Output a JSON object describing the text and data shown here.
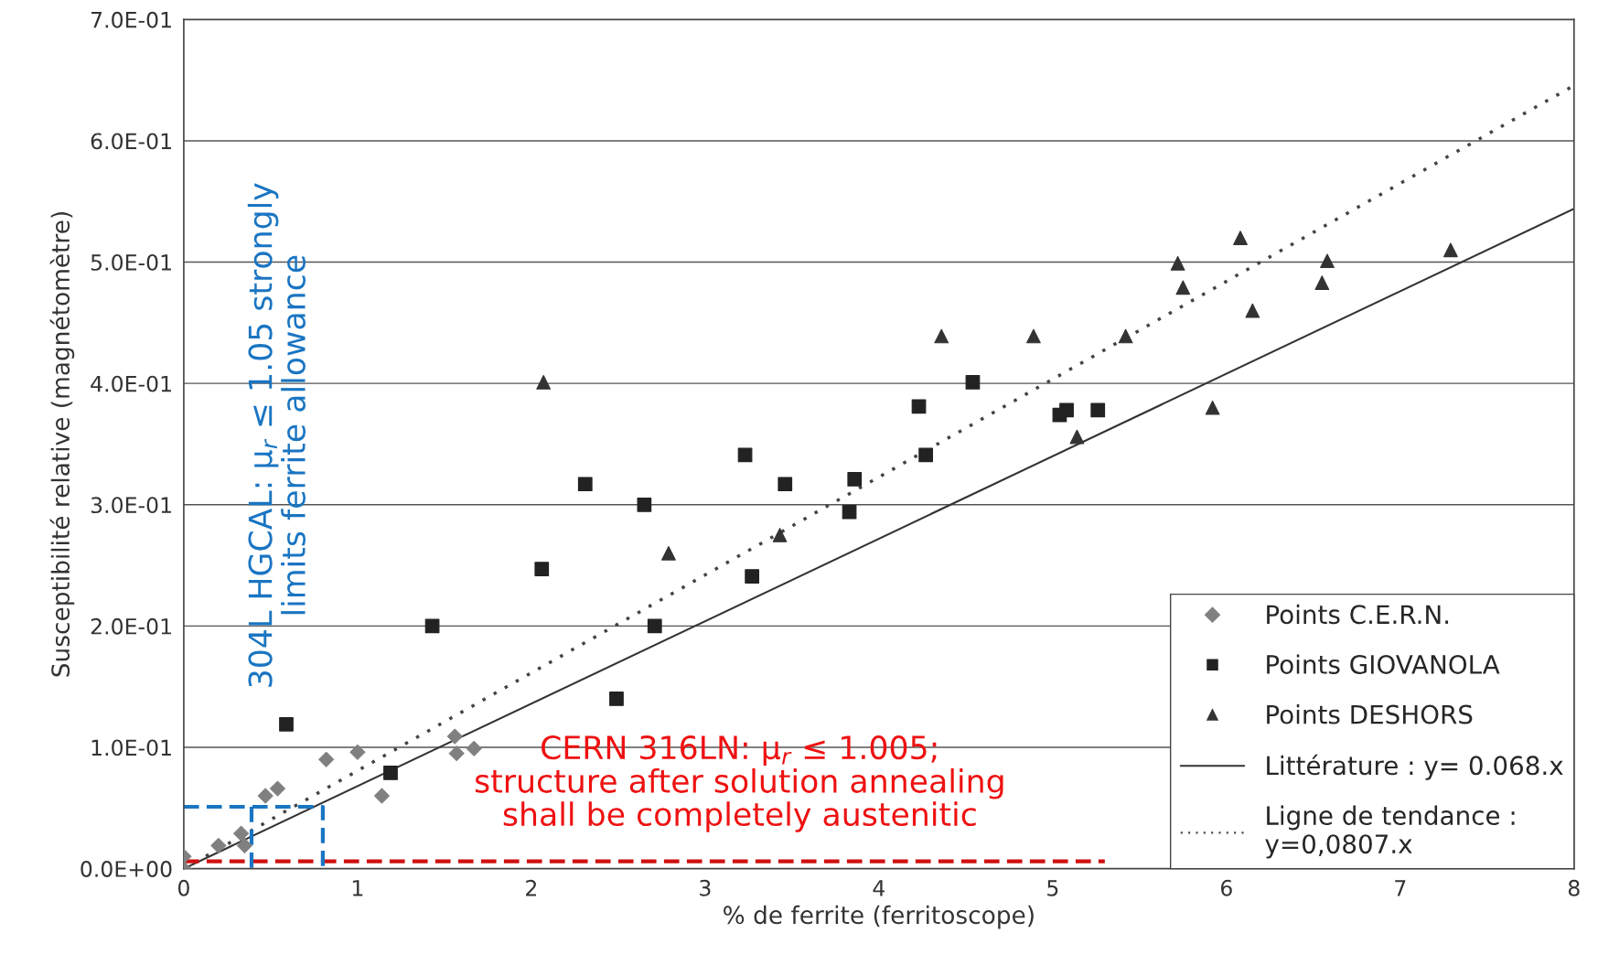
{
  "chart_data": {
    "type": "scatter",
    "xlabel": "% de ferrite (ferritoscope)",
    "ylabel": "Susceptibilité relative (magnétomètre)",
    "xlim": [
      0,
      8
    ],
    "xticks": [
      0,
      1,
      2,
      3,
      4,
      5,
      6,
      7,
      8
    ],
    "ylim": [
      0,
      0.7
    ],
    "yticks": [
      {
        "value": 0,
        "label": "0.0E+00"
      },
      {
        "value": 0.1,
        "label": "1.0E-01"
      },
      {
        "value": 0.2,
        "label": "2.0E-01"
      },
      {
        "value": 0.3,
        "label": "3.0E-01"
      },
      {
        "value": 0.4,
        "label": "4.0E-01"
      },
      {
        "value": 0.5,
        "label": "5.0E-01"
      },
      {
        "value": 0.6,
        "label": "6.0E-01"
      },
      {
        "value": 0.7,
        "label": "7.0E-01"
      }
    ],
    "grid": "y",
    "legend": "bottom right",
    "series": [
      {
        "name": "Points C.E.R.N.",
        "marker": "diamond",
        "color": "#808080",
        "x": [
          0,
          0,
          0.2,
          0.33,
          0.35,
          0.47,
          0.54,
          0.82,
          1.0,
          1.14,
          1.56,
          1.57,
          1.67
        ],
        "values": [
          0,
          0.01,
          0.019,
          0.029,
          0.019,
          0.06,
          0.066,
          0.09,
          0.096,
          0.06,
          0.109,
          0.095,
          0.099
        ]
      },
      {
        "name": "Points GIOVANOLA",
        "marker": "square",
        "color": "#222222",
        "x": [
          0.59,
          1.19,
          1.43,
          2.06,
          2.31,
          2.49,
          2.65,
          2.71,
          3.23,
          3.27,
          3.46,
          3.83,
          3.86,
          4.23,
          4.27,
          4.54,
          5.04,
          5.08,
          5.26
        ],
        "values": [
          0.119,
          0.079,
          0.2,
          0.247,
          0.317,
          0.14,
          0.3,
          0.2,
          0.341,
          0.241,
          0.317,
          0.294,
          0.321,
          0.381,
          0.341,
          0.401,
          0.374,
          0.378,
          0.378
        ]
      },
      {
        "name": "Points DESHORS",
        "marker": "triangle",
        "color": "#333333",
        "x": [
          2.07,
          2.79,
          3.43,
          4.36,
          4.89,
          5.14,
          5.42,
          5.72,
          5.75,
          5.92,
          6.08,
          6.15,
          6.55,
          6.58,
          7.29
        ],
        "values": [
          0.401,
          0.26,
          0.275,
          0.439,
          0.439,
          0.356,
          0.439,
          0.499,
          0.479,
          0.38,
          0.52,
          0.46,
          0.483,
          0.501,
          0.51
        ]
      },
      {
        "name": "Littérature : y= 0.068.x",
        "type": "line",
        "line_style": "solid",
        "color": "#333333",
        "x": [
          0,
          8
        ],
        "values": [
          0,
          0.544
        ]
      },
      {
        "name": "Ligne de tendance :\ny=0,0807.x",
        "type": "line",
        "line_style": "dotted",
        "color": "#444444",
        "x": [
          0,
          8
        ],
        "values": [
          0,
          0.6456
        ]
      },
      {
        "type": "line",
        "line_style": "dashed",
        "color": "#d01010",
        "x": [
          0,
          5.3
        ],
        "values": [
          0.006,
          0.006
        ]
      },
      {
        "type": "line",
        "line_style": "dashed",
        "color": "#1a75c2",
        "x": [
          0,
          0.8,
          0.8
        ],
        "values": [
          0.051,
          0.051,
          0
        ]
      },
      {
        "type": "line",
        "line_style": "dashed",
        "color": "#1a75c2",
        "x": [
          0.39,
          0.39
        ],
        "values": [
          0.051,
          0
        ]
      }
    ],
    "annotations": [
      "304L HGCAL: μ$_{r}$ ≤ 1.05 strongly\nlimits ferrite allowance",
      "CERN 316LN: μ$_{r}$ ≤ 1.005;\nstructure after solution annealing\nshall be completely austenitic"
    ]
  }
}
